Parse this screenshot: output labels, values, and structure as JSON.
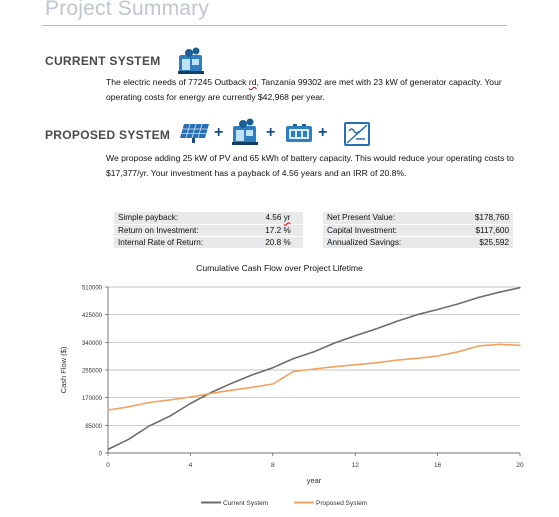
{
  "page": {
    "title": "Project Summary"
  },
  "current": {
    "heading": "CURRENT SYSTEM",
    "icon": "generator-icon",
    "text_before": "The electric needs of 77245 Outback ",
    "text_flagged": "rd",
    "text_after": ", Tanzania 99302 are met with 23 kW of generator capacity. Your operating costs for energy are currently $42,968 per year."
  },
  "proposed": {
    "heading": "PROPOSED SYSTEM",
    "icons": [
      "solar-panel-icon",
      "generator-icon",
      "battery-icon",
      "converter-icon"
    ],
    "text": "We propose adding 25 kW of PV and 65 kWh of battery capacity. This would reduce your operating costs to $17,377/yr. Your investment has a payback of 4.56 years and an IRR of 20.8%."
  },
  "metrics": {
    "left": [
      {
        "label": "Simple payback:",
        "value": "4.56",
        "unit": "yr"
      },
      {
        "label": "Return on Investment:",
        "value": "17.2 %",
        "unit": ""
      },
      {
        "label": "Internal Rate of Return:",
        "value": "20.8 %",
        "unit": ""
      }
    ],
    "right": [
      {
        "label": "Net Present Value:",
        "value": "$178,760"
      },
      {
        "label": "Capital Investment:",
        "value": "$117,600"
      },
      {
        "label": "Annualized Savings:",
        "value": "$25,592"
      }
    ]
  },
  "chart_data": {
    "type": "line",
    "title": "Cumulative Cash Flow over Project Lifetime",
    "xlabel": "year",
    "ylabel": "Cash Flow ($)",
    "xlim": [
      0,
      20
    ],
    "ylim": [
      0,
      510000
    ],
    "x_ticks": [
      "0",
      "4",
      "8",
      "12",
      "16",
      "20"
    ],
    "y_ticks": [
      "0",
      "85000",
      "170000",
      "255000",
      "340000",
      "425000",
      "510000"
    ],
    "grid": true,
    "legend": "bottom",
    "x": [
      0,
      1,
      2,
      3,
      4,
      5,
      6,
      7,
      8,
      9,
      10,
      11,
      12,
      13,
      14,
      15,
      16,
      17,
      18,
      19,
      20
    ],
    "series": [
      {
        "name": "Current System",
        "color": "#6d6d6d",
        "values": [
          11000,
          42000,
          83000,
          113000,
          152000,
          186000,
          214000,
          240000,
          262000,
          290000,
          311000,
          338000,
          360000,
          381000,
          404000,
          425000,
          441000,
          458000,
          478000,
          494000,
          508000
        ]
      },
      {
        "name": "Proposed System",
        "color": "#f3a15f",
        "values": [
          132000,
          142000,
          155000,
          163000,
          172000,
          183000,
          193000,
          202000,
          212000,
          250000,
          258000,
          265000,
          271000,
          277000,
          285000,
          291000,
          298000,
          311000,
          329000,
          334000,
          331000
        ]
      }
    ]
  }
}
